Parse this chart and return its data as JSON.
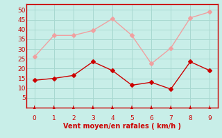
{
  "x": [
    0,
    1,
    2,
    3,
    4,
    5,
    6,
    7,
    8,
    9
  ],
  "y_rafales": [
    26,
    37,
    37,
    39.5,
    45.5,
    37,
    22.5,
    30.5,
    46,
    49
  ],
  "y_moyen": [
    14,
    15,
    16.5,
    23.5,
    19,
    11.5,
    13,
    9.5,
    23.5,
    19
  ],
  "color_rafales": "#f0a0a0",
  "color_moyen": "#cc0000",
  "bg_color": "#c8eee8",
  "grid_color": "#a8d8d0",
  "axis_color": "#cc0000",
  "text_color": "#cc0000",
  "xlabel": "Vent moyen/en rafales ( km/h )",
  "ylim": [
    0,
    53
  ],
  "xlim": [
    -0.4,
    9.4
  ],
  "yticks": [
    5,
    10,
    15,
    20,
    25,
    30,
    35,
    40,
    45,
    50
  ],
  "xticks": [
    0,
    1,
    2,
    3,
    4,
    5,
    6,
    7,
    8,
    9
  ]
}
